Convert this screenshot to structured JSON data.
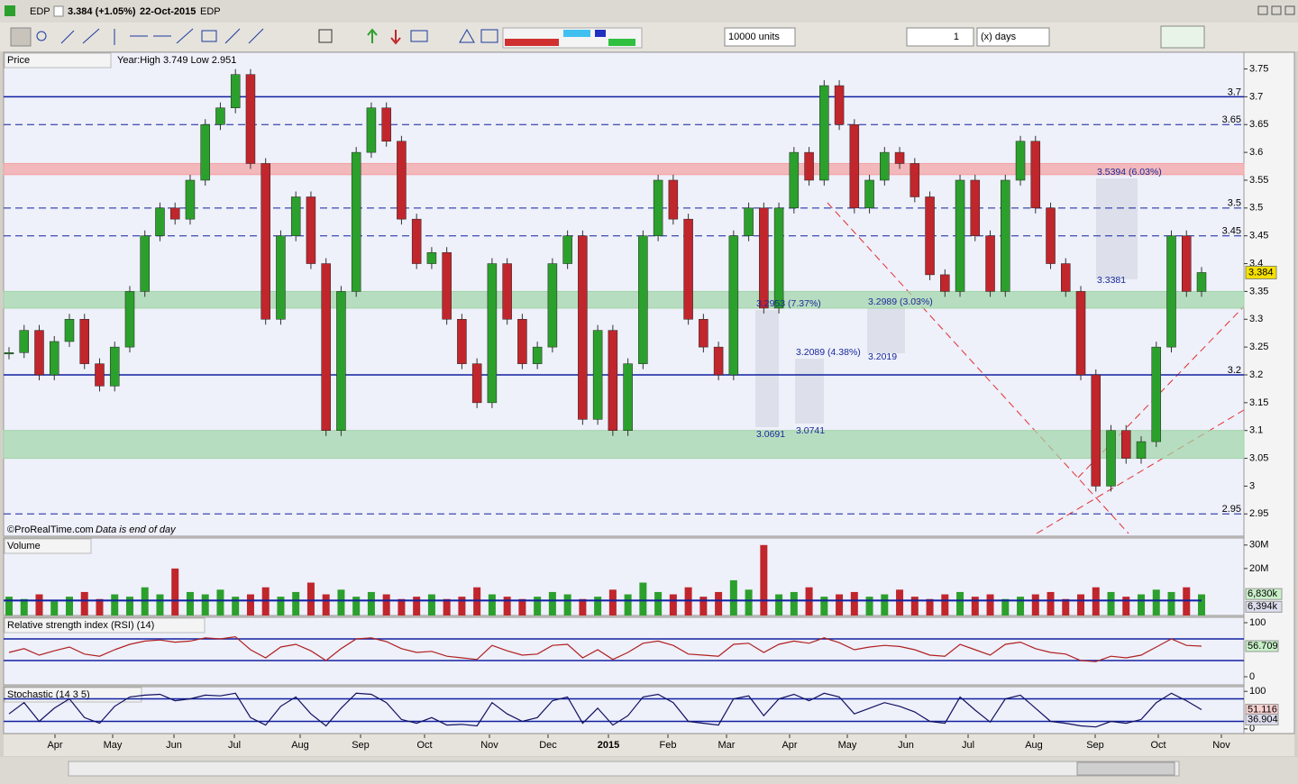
{
  "header": {
    "symbol": "EDP",
    "price_change": "3.384 (+1.05%)",
    "date": "22-Oct-2015",
    "exchange": "EDP"
  },
  "toolbar": {
    "units": "10000 units",
    "period_count": "1",
    "period_unit": "(x) days"
  },
  "chart_data": [
    {
      "type": "candlestick",
      "title": "Price",
      "subtitle": "Year:High 3.749 Low 2.951",
      "footer": "©ProRealTime.com",
      "footnote": "Data is end of day",
      "up_color": "#2ca02c",
      "down_color": "#c0262c",
      "ylim": [
        2.91,
        3.78
      ],
      "yticks": [
        3.75,
        3.7,
        3.65,
        3.6,
        3.55,
        3.5,
        3.45,
        3.4,
        3.35,
        3.3,
        3.25,
        3.2,
        3.15,
        3.1,
        3.05,
        3,
        2.95
      ],
      "levels": [
        3.7,
        3.65,
        3.5,
        3.45,
        3.2,
        2.95
      ],
      "level_styles": [
        "solid",
        "dashed",
        "dashed",
        "dashed",
        "solid",
        "dashed"
      ],
      "zones": [
        {
          "from": 3.56,
          "to": 3.58,
          "color": "#f4a0a0"
        },
        {
          "from": 3.32,
          "to": 3.35,
          "color": "#9fd4a6"
        },
        {
          "from": 3.05,
          "to": 3.1,
          "color": "#9fd4a6"
        }
      ],
      "annotations": [
        "3.5394 (6.03%)",
        "3.3381",
        "3.2953 (7.37%)",
        "3.2989 (3.03%)",
        "3.2089 (4.38%)",
        "3.2019",
        "3.0691",
        "3.0741"
      ],
      "values": [
        3.24,
        3.28,
        3.2,
        3.26,
        3.3,
        3.22,
        3.18,
        3.25,
        3.35,
        3.45,
        3.5,
        3.48,
        3.55,
        3.65,
        3.68,
        3.74,
        3.58,
        3.3,
        3.45,
        3.52,
        3.4,
        3.1,
        3.35,
        3.6,
        3.68,
        3.62,
        3.48,
        3.4,
        3.42,
        3.3,
        3.22,
        3.15,
        3.4,
        3.3,
        3.22,
        3.25,
        3.4,
        3.45,
        3.12,
        3.28,
        3.1,
        3.22,
        3.45,
        3.55,
        3.48,
        3.3,
        3.25,
        3.2,
        3.45,
        3.5,
        3.32,
        3.5,
        3.6,
        3.55,
        3.72,
        3.65,
        3.5,
        3.55,
        3.6,
        3.58,
        3.52,
        3.38,
        3.35,
        3.55,
        3.45,
        3.35,
        3.55,
        3.62,
        3.5,
        3.4,
        3.35,
        3.2,
        3.0,
        3.1,
        3.05,
        3.08,
        3.25,
        3.45,
        3.35,
        3.384
      ]
    },
    {
      "type": "volume",
      "title": "Volume",
      "color": "#c0262c",
      "ylim": [
        0,
        33
      ],
      "yticks": [
        {
          "value": 20,
          "label": "20M"
        },
        {
          "value": 30,
          "label": "30M"
        }
      ],
      "markers": [
        {
          "value": 6.83,
          "label": "6,830k"
        },
        {
          "value": 6.394,
          "label": "6,394k"
        }
      ],
      "values": [
        8,
        7,
        9,
        6,
        8,
        10,
        7,
        9,
        8,
        12,
        9,
        20,
        10,
        9,
        11,
        8,
        9,
        12,
        8,
        10,
        14,
        9,
        11,
        8,
        10,
        9,
        7,
        8,
        9,
        7,
        8,
        12,
        9,
        8,
        7,
        8,
        10,
        9,
        7,
        8,
        11,
        9,
        14,
        10,
        9,
        12,
        8,
        10,
        15,
        11,
        30,
        9,
        10,
        12,
        8,
        9,
        10,
        8,
        9,
        11,
        8,
        7,
        9,
        10,
        8,
        9,
        7,
        8,
        9,
        10,
        7,
        9,
        12,
        10,
        8,
        9,
        11,
        10,
        12,
        9
      ]
    },
    {
      "type": "line",
      "title": "Relative strength index (RSI) (14)",
      "color": "#b02020",
      "ylim": [
        -15,
        110
      ],
      "yticks": [
        0,
        100
      ],
      "levels": [
        70,
        30
      ],
      "values": [
        45,
        52,
        40,
        48,
        55,
        42,
        38,
        50,
        60,
        66,
        68,
        64,
        66,
        72,
        70,
        74,
        50,
        35,
        55,
        60,
        48,
        30,
        52,
        70,
        72,
        65,
        52,
        45,
        47,
        38,
        35,
        32,
        58,
        48,
        40,
        42,
        58,
        60,
        35,
        50,
        32,
        45,
        62,
        66,
        58,
        42,
        40,
        38,
        60,
        62,
        45,
        60,
        66,
        62,
        72,
        63,
        50,
        55,
        58,
        56,
        50,
        40,
        38,
        60,
        50,
        40,
        60,
        64,
        52,
        45,
        42,
        30,
        28,
        38,
        35,
        40,
        55,
        70,
        58,
        56.709
      ]
    },
    {
      "type": "line",
      "title": "Stochastic (14 3 5)",
      "color": "#101060",
      "ylim": [
        -12.5,
        112.5
      ],
      "yticks": [
        0,
        100
      ],
      "levels": [
        80,
        20
      ],
      "signal": 36.904,
      "values": [
        40,
        70,
        20,
        55,
        80,
        30,
        15,
        60,
        85,
        90,
        92,
        75,
        80,
        90,
        88,
        95,
        30,
        10,
        60,
        85,
        40,
        8,
        55,
        95,
        92,
        70,
        25,
        15,
        30,
        10,
        12,
        8,
        70,
        40,
        20,
        30,
        75,
        85,
        15,
        55,
        10,
        35,
        85,
        92,
        70,
        20,
        15,
        10,
        80,
        88,
        35,
        80,
        92,
        75,
        95,
        85,
        40,
        55,
        70,
        60,
        45,
        20,
        15,
        85,
        50,
        18,
        80,
        90,
        55,
        20,
        15,
        8,
        5,
        20,
        15,
        25,
        70,
        95,
        75,
        51.116
      ],
      "time_labels": [
        "Apr",
        "May",
        "Jun",
        "Jul",
        "Aug",
        "Sep",
        "Oct",
        "Nov",
        "Dec",
        "2015",
        "Feb",
        "Mar",
        "Apr",
        "May",
        "Jun",
        "Jul",
        "Aug",
        "Sep",
        "Oct",
        "Nov"
      ]
    }
  ]
}
